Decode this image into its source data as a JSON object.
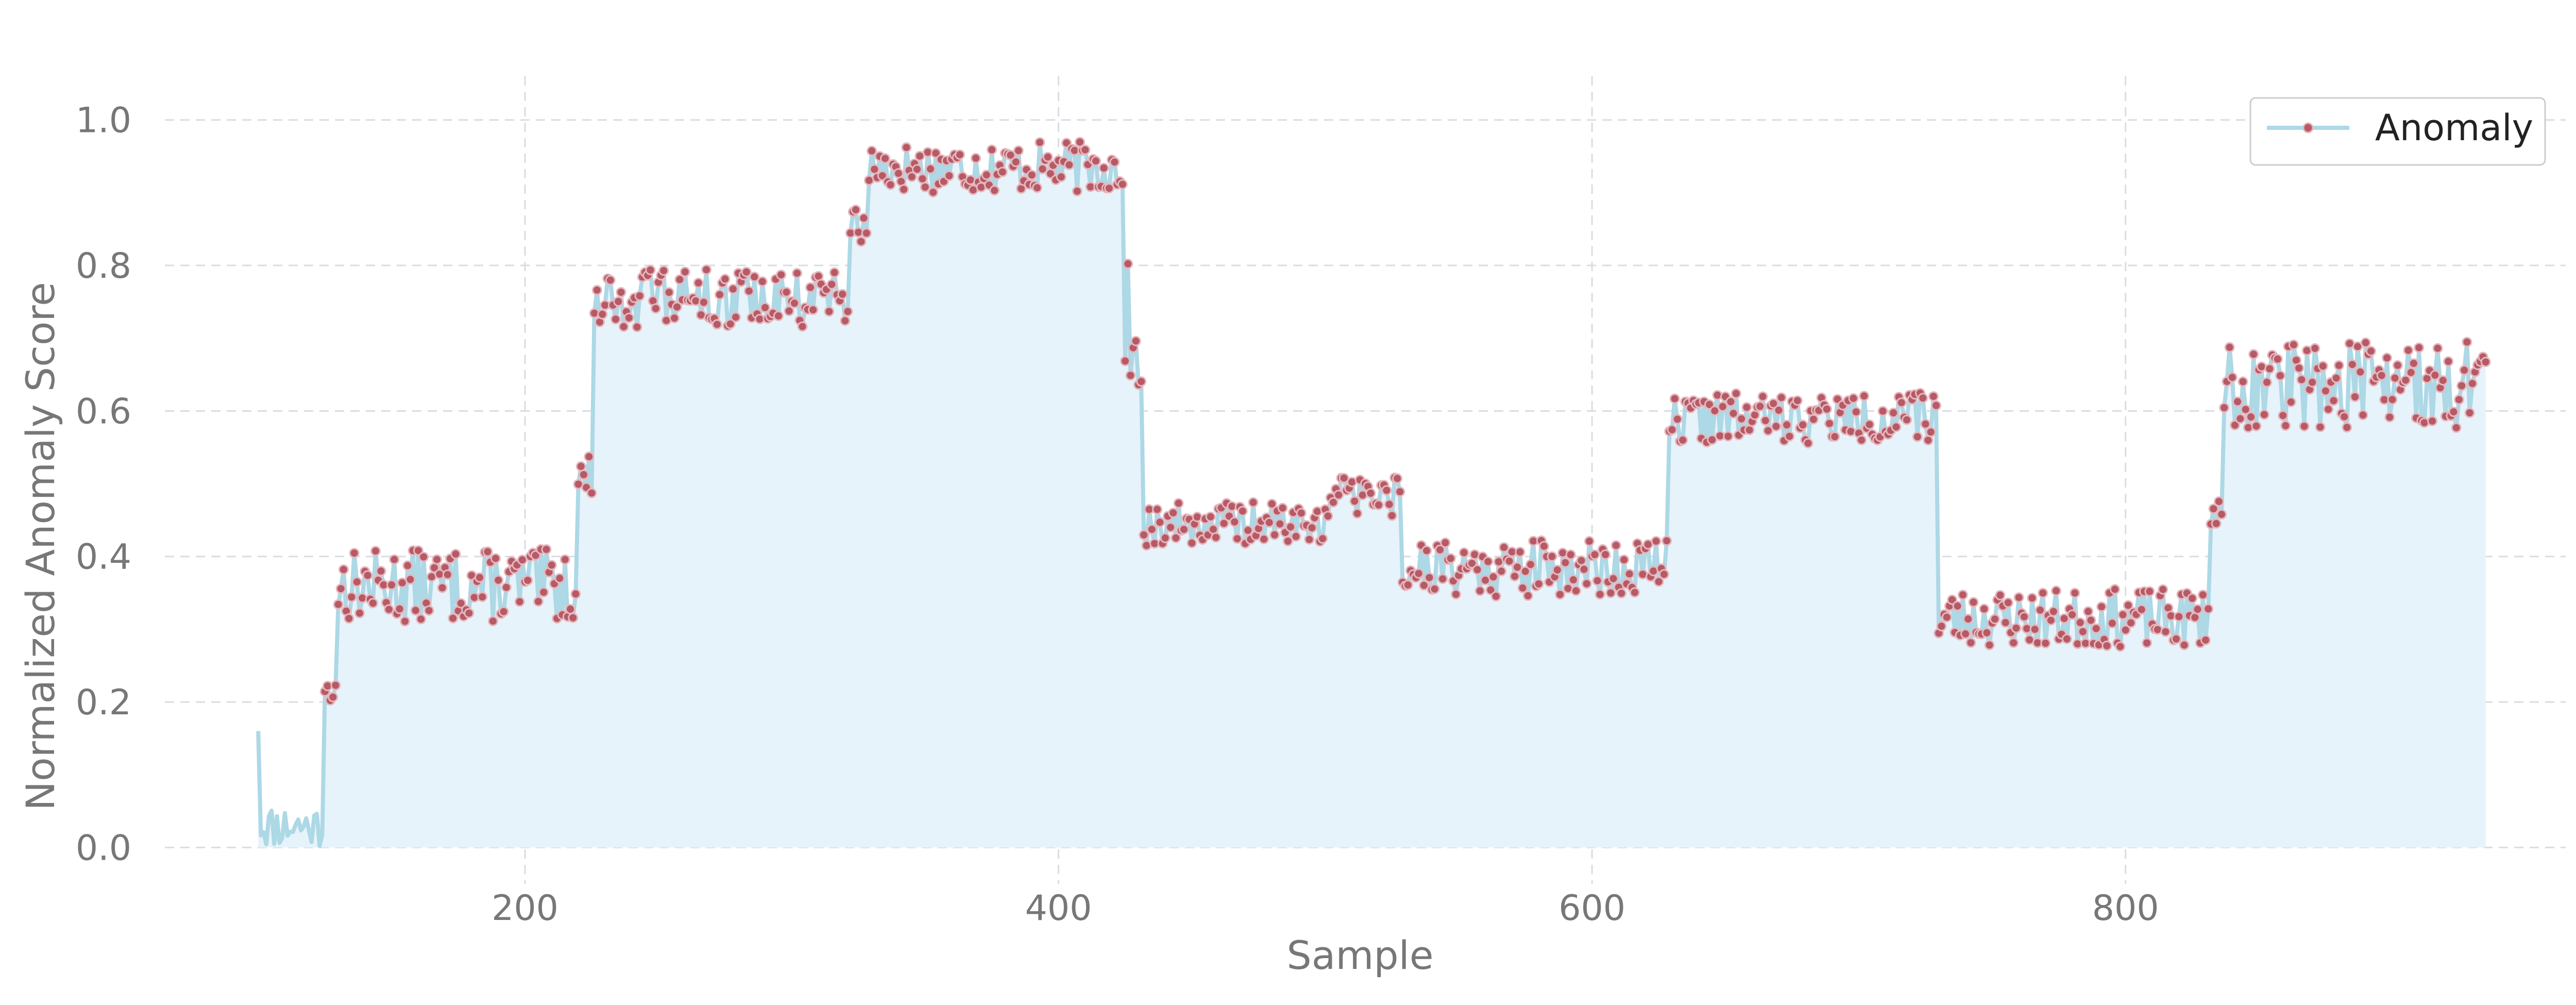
{
  "chart_data": {
    "type": "area",
    "title": "",
    "xlabel": "Sample",
    "ylabel": "Normalized Anomaly Score",
    "xlim": [
      65,
      965
    ],
    "ylim": [
      -0.05,
      1.06
    ],
    "xticks": [
      200,
      400,
      600,
      800
    ],
    "yticks": [
      0.0,
      0.2,
      0.4,
      0.6,
      0.8,
      1.0
    ],
    "grid": true,
    "legend": {
      "placement": "top-right",
      "entries": [
        "Anomaly"
      ]
    },
    "colors": {
      "line": "#add8e6",
      "fill": "#e6f3fa",
      "marker": "#b65a66",
      "marker_edge": "#e6b8be"
    },
    "series": [
      {
        "name": "Anomaly",
        "segments": [
          {
            "x_start": 100,
            "x_end": 124,
            "markers": false,
            "base": 0.03,
            "noise": 0.03,
            "first": 0.16,
            "seed": 11
          },
          {
            "x_start": 125,
            "x_end": 129,
            "markers": true,
            "base": 0.23,
            "noise": 0.03,
            "seed": 12
          },
          {
            "x_start": 130,
            "x_end": 219,
            "markers": true,
            "base": 0.36,
            "noise": 0.05,
            "seed": 13
          },
          {
            "x_start": 220,
            "x_end": 225,
            "markers": true,
            "base": 0.52,
            "noise": 0.04,
            "seed": 14
          },
          {
            "x_start": 226,
            "x_end": 321,
            "markers": true,
            "base": 0.755,
            "noise": 0.04,
            "seed": 15
          },
          {
            "x_start": 322,
            "x_end": 328,
            "markers": true,
            "base": 0.86,
            "noise": 0.03,
            "seed": 16
          },
          {
            "x_start": 329,
            "x_end": 424,
            "markers": true,
            "base": 0.935,
            "noise": 0.035,
            "seed": 17
          },
          {
            "x_start": 425,
            "x_end": 431,
            "markers": true,
            "base": 0.72,
            "noise": 0.1,
            "seed": 18
          },
          {
            "x_start": 432,
            "x_end": 499,
            "markers": true,
            "base": 0.445,
            "noise": 0.03,
            "seed": 19
          },
          {
            "x_start": 500,
            "x_end": 528,
            "markers": true,
            "base": 0.48,
            "noise": 0.03,
            "seed": 20
          },
          {
            "x_start": 529,
            "x_end": 628,
            "markers": true,
            "base": 0.385,
            "noise": 0.04,
            "seed": 21
          },
          {
            "x_start": 629,
            "x_end": 729,
            "markers": true,
            "base": 0.59,
            "noise": 0.035,
            "seed": 22
          },
          {
            "x_start": 730,
            "x_end": 831,
            "markers": true,
            "base": 0.315,
            "noise": 0.04,
            "seed": 23
          },
          {
            "x_start": 832,
            "x_end": 836,
            "markers": true,
            "base": 0.47,
            "noise": 0.05,
            "seed": 24
          },
          {
            "x_start": 837,
            "x_end": 935,
            "markers": true,
            "base": 0.635,
            "noise": 0.06,
            "seed": 25
          }
        ]
      }
    ]
  }
}
